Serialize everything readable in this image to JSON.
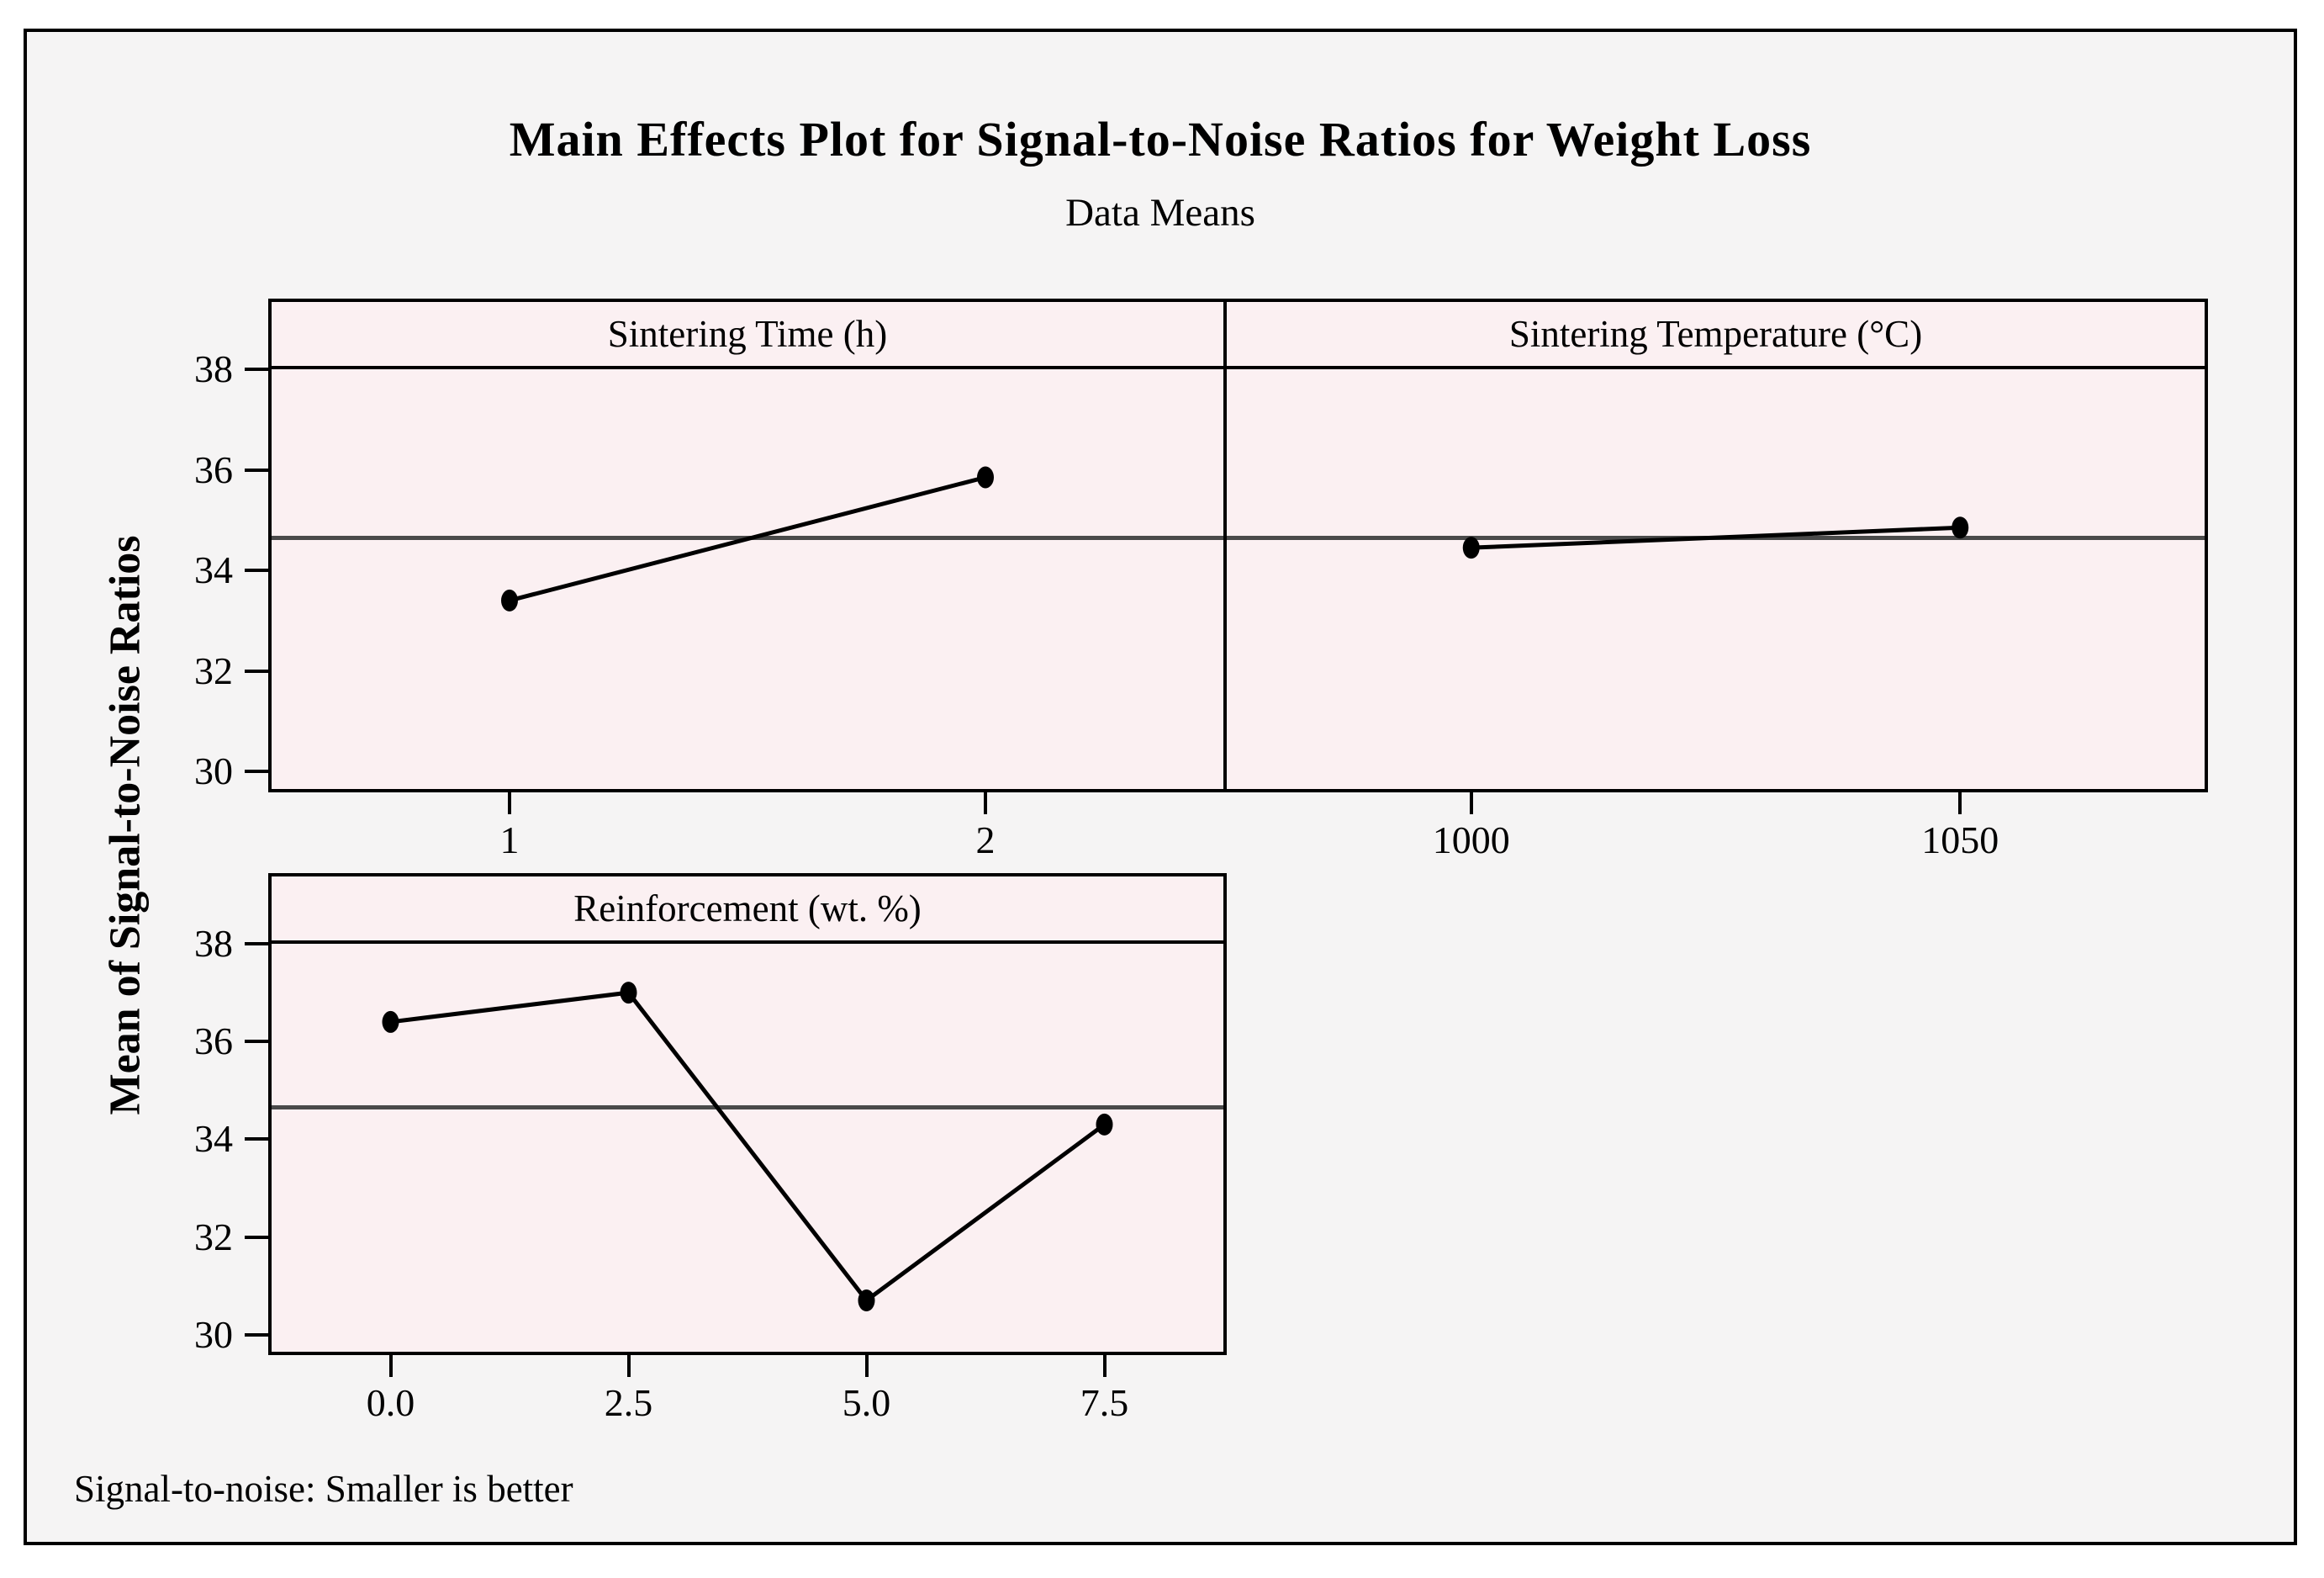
{
  "header": {
    "title": "Main Effects Plot for Signal-to-Noise Ratios for Weight Loss",
    "subtitle": "Data Means"
  },
  "chart_data": {
    "type": "line",
    "title": "Main Effects Plot for Signal-to-Noise Ratios for Weight Loss",
    "subtitle": "Data Means",
    "ylabel": "Mean of Signal-to-Noise Ratios",
    "note": "Signal-to-noise: Smaller is better",
    "ref_line": 34.65,
    "ylim": [
      29.65,
      38.0
    ],
    "yticks": [
      38,
      36,
      34,
      32,
      30
    ],
    "grid": false,
    "legend": false,
    "panels": [
      {
        "title": "Sintering Time (h)",
        "categories": [
          "1",
          "2"
        ],
        "values": [
          33.4,
          35.85
        ]
      },
      {
        "title": "Sintering Temperature (°C)",
        "categories": [
          "1000",
          "1050"
        ],
        "values": [
          34.45,
          34.85
        ]
      },
      {
        "title": "Reinforcement (wt. %)",
        "categories": [
          "0.0",
          "2.5",
          "5.0",
          "7.5"
        ],
        "values": [
          36.4,
          37.0,
          30.7,
          34.3
        ]
      }
    ],
    "colors": {
      "figure_bg": "#f5f4f4",
      "panel_fill": "#fbf0f2",
      "series_line": "#000000",
      "marker": "#000000",
      "reference_line": "#4a4a4a",
      "border": "#000000",
      "page_bg": "#ffffff"
    }
  }
}
